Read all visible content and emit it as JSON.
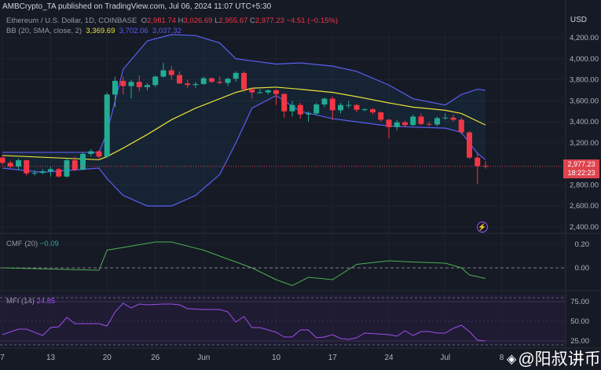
{
  "header": {
    "published": "AMBCrypto_TA published on TradingView.com, Jul 06, 2024 11:07 UTC+5:30"
  },
  "legend": {
    "symbol": "Ethereum / U.S. Dollar, 1D, COINBASE",
    "o_label": "O",
    "o": "2,981.74",
    "h_label": "H",
    "h": "3,026.69",
    "l_label": "L",
    "l": "2,955.67",
    "c_label": "C",
    "c": "2,977.23",
    "change": "−4.51 (−0.15%)",
    "bb_label": "BB (20, SMA, close, 2)",
    "bb_mid": "3,369.69",
    "bb_upper": "3,702.06",
    "bb_lower": "3,037.32",
    "cmf_label": "CMF (20)",
    "cmf_value": "−0.09",
    "mfi_label": "MFI (14)",
    "mfi_value": "24.85"
  },
  "currency": "USD",
  "price_tag": {
    "price": "2,977.23",
    "countdown": "18:22:23"
  },
  "watermark": "@阳叔讲币",
  "colors": {
    "up": "#22ab94",
    "down": "#f23645",
    "bb_mid": "#e8e23a",
    "bb_band": "#5b5ef0",
    "cmf": "#4caf50",
    "mfi": "#9c4ff0"
  },
  "chart_data": [
    {
      "type": "candlestick",
      "title": "Ethereum / U.S. Dollar, 1D, COINBASE",
      "start_date": "2024-05-07",
      "x_ticks": [
        {
          "day": 0,
          "label": "7"
        },
        {
          "day": 6,
          "label": "13"
        },
        {
          "day": 13,
          "label": "20"
        },
        {
          "day": 19,
          "label": "26"
        },
        {
          "day": 25,
          "label": "Jun"
        },
        {
          "day": 34,
          "label": "10"
        },
        {
          "day": 41,
          "label": "17"
        },
        {
          "day": 48,
          "label": "24"
        },
        {
          "day": 55,
          "label": "Jul"
        },
        {
          "day": 62,
          "label": "8"
        }
      ],
      "y_ticks": [
        4200,
        4000,
        3800,
        3600,
        3400,
        3200,
        2800,
        2600,
        2400
      ],
      "ylim": [
        2400,
        4200
      ],
      "ohlc": [
        [
          3060,
          3080,
          2990,
          3010
        ],
        [
          3010,
          3030,
          2960,
          2975
        ],
        [
          2975,
          3050,
          2950,
          3035
        ],
        [
          3035,
          3040,
          2890,
          2910
        ],
        [
          2910,
          2940,
          2890,
          2915
        ],
        [
          2915,
          2950,
          2900,
          2930
        ],
        [
          2930,
          2970,
          2880,
          2950
        ],
        [
          2950,
          2960,
          2870,
          2880
        ],
        [
          2880,
          3050,
          2870,
          3035
        ],
        [
          3035,
          3070,
          2930,
          2945
        ],
        [
          2945,
          3110,
          2940,
          3095
        ],
        [
          3095,
          3140,
          3070,
          3120
        ],
        [
          3120,
          3130,
          3050,
          3070
        ],
        [
          3070,
          3680,
          3060,
          3660
        ],
        [
          3660,
          3830,
          3540,
          3790
        ],
        [
          3790,
          3830,
          3660,
          3740
        ],
        [
          3740,
          3800,
          3620,
          3780
        ],
        [
          3780,
          3840,
          3690,
          3730
        ],
        [
          3730,
          3770,
          3700,
          3750
        ],
        [
          3750,
          3840,
          3730,
          3830
        ],
        [
          3830,
          3960,
          3820,
          3890
        ],
        [
          3890,
          3930,
          3800,
          3845
        ],
        [
          3845,
          3880,
          3760,
          3765
        ],
        [
          3765,
          3800,
          3720,
          3750
        ],
        [
          3750,
          3780,
          3720,
          3760
        ],
        [
          3760,
          3830,
          3750,
          3815
        ],
        [
          3815,
          3820,
          3770,
          3780
        ],
        [
          3780,
          3830,
          3760,
          3770
        ],
        [
          3770,
          3820,
          3740,
          3810
        ],
        [
          3810,
          3880,
          3780,
          3865
        ],
        [
          3865,
          3880,
          3680,
          3710
        ],
        [
          3710,
          3720,
          3620,
          3680
        ],
        [
          3680,
          3710,
          3670,
          3680
        ],
        [
          3680,
          3710,
          3660,
          3700
        ],
        [
          3700,
          3710,
          3560,
          3665
        ],
        [
          3665,
          3670,
          3440,
          3500
        ],
        [
          3500,
          3600,
          3450,
          3560
        ],
        [
          3560,
          3580,
          3430,
          3470
        ],
        [
          3470,
          3500,
          3400,
          3480
        ],
        [
          3480,
          3580,
          3460,
          3565
        ],
        [
          3565,
          3630,
          3540,
          3620
        ],
        [
          3620,
          3640,
          3420,
          3510
        ],
        [
          3510,
          3580,
          3480,
          3560
        ],
        [
          3560,
          3600,
          3530,
          3560
        ],
        [
          3560,
          3570,
          3490,
          3515
        ],
        [
          3515,
          3530,
          3500,
          3520
        ],
        [
          3520,
          3530,
          3470,
          3490
        ],
        [
          3490,
          3500,
          3400,
          3420
        ],
        [
          3420,
          3430,
          3240,
          3350
        ],
        [
          3350,
          3420,
          3320,
          3395
        ],
        [
          3395,
          3410,
          3350,
          3370
        ],
        [
          3370,
          3470,
          3360,
          3450
        ],
        [
          3450,
          3480,
          3370,
          3380
        ],
        [
          3380,
          3400,
          3360,
          3375
        ],
        [
          3375,
          3450,
          3360,
          3435
        ],
        [
          3435,
          3480,
          3420,
          3440
        ],
        [
          3440,
          3470,
          3400,
          3420
        ],
        [
          3420,
          3440,
          3280,
          3300
        ],
        [
          3300,
          3310,
          3050,
          3060
        ],
        [
          3060,
          3110,
          2810,
          2980
        ],
        [
          2981.74,
          3026.69,
          2955.67,
          2977.23
        ]
      ],
      "bb_upper": [
        [
          0,
          3110
        ],
        [
          12,
          3110
        ],
        [
          13,
          3300
        ],
        [
          15,
          3900
        ],
        [
          18,
          4170
        ],
        [
          21,
          4230
        ],
        [
          24,
          4220
        ],
        [
          27,
          4150
        ],
        [
          29,
          4000
        ],
        [
          31,
          3980
        ],
        [
          34,
          3950
        ],
        [
          37,
          3960
        ],
        [
          41,
          3930
        ],
        [
          44,
          3880
        ],
        [
          48,
          3750
        ],
        [
          51,
          3620
        ],
        [
          55,
          3560
        ],
        [
          57,
          3660
        ],
        [
          59,
          3710
        ],
        [
          60,
          3700
        ]
      ],
      "bb_mid": [
        [
          0,
          3080
        ],
        [
          12,
          3040
        ],
        [
          13,
          3070
        ],
        [
          15,
          3150
        ],
        [
          18,
          3280
        ],
        [
          21,
          3420
        ],
        [
          24,
          3530
        ],
        [
          27,
          3620
        ],
        [
          29,
          3680
        ],
        [
          31,
          3720
        ],
        [
          34,
          3730
        ],
        [
          37,
          3710
        ],
        [
          41,
          3680
        ],
        [
          44,
          3640
        ],
        [
          48,
          3580
        ],
        [
          51,
          3540
        ],
        [
          55,
          3510
        ],
        [
          57,
          3480
        ],
        [
          60,
          3370
        ]
      ],
      "bb_lower": [
        [
          0,
          2960
        ],
        [
          5,
          2920
        ],
        [
          12,
          2960
        ],
        [
          13,
          2860
        ],
        [
          15,
          2700
        ],
        [
          18,
          2600
        ],
        [
          21,
          2600
        ],
        [
          24,
          2700
        ],
        [
          27,
          2900
        ],
        [
          29,
          3200
        ],
        [
          31,
          3530
        ],
        [
          34,
          3650
        ],
        [
          37,
          3500
        ],
        [
          41,
          3430
        ],
        [
          44,
          3400
        ],
        [
          48,
          3360
        ],
        [
          51,
          3350
        ],
        [
          55,
          3340
        ],
        [
          57,
          3300
        ],
        [
          59,
          3100
        ],
        [
          60,
          3040
        ]
      ]
    },
    {
      "type": "line",
      "title": "CMF (20)",
      "y_ticks": [
        0.2,
        0.0
      ],
      "ylim": [
        -0.18,
        0.3
      ],
      "values": [
        [
          0,
          0.0
        ],
        [
          12,
          -0.02
        ],
        [
          13,
          0.15
        ],
        [
          19,
          0.22
        ],
        [
          21,
          0.22
        ],
        [
          25,
          0.15
        ],
        [
          27,
          0.1
        ],
        [
          31,
          0.0
        ],
        [
          34,
          -0.1
        ],
        [
          36,
          -0.15
        ],
        [
          38,
          -0.08
        ],
        [
          41,
          -0.1
        ],
        [
          44,
          0.03
        ],
        [
          48,
          0.06
        ],
        [
          51,
          0.05
        ],
        [
          55,
          0.04
        ],
        [
          57,
          0.0
        ],
        [
          58,
          -0.06
        ],
        [
          60,
          -0.09
        ]
      ]
    },
    {
      "type": "line",
      "title": "MFI (14)",
      "y_ticks": [
        75,
        50,
        25
      ],
      "ylim": [
        15,
        85
      ],
      "band": [
        20,
        80
      ],
      "values": [
        [
          0,
          33
        ],
        [
          2,
          40
        ],
        [
          3,
          40
        ],
        [
          5,
          32
        ],
        [
          6,
          42
        ],
        [
          7,
          43
        ],
        [
          8,
          55
        ],
        [
          9,
          47
        ],
        [
          12,
          47
        ],
        [
          13,
          44
        ],
        [
          14,
          62
        ],
        [
          15,
          73
        ],
        [
          16,
          67
        ],
        [
          17,
          72
        ],
        [
          18,
          71
        ],
        [
          20,
          72
        ],
        [
          21,
          72
        ],
        [
          22,
          71
        ],
        [
          23,
          66
        ],
        [
          25,
          65
        ],
        [
          27,
          65
        ],
        [
          28,
          62
        ],
        [
          29,
          49
        ],
        [
          30,
          56
        ],
        [
          31,
          42
        ],
        [
          32,
          42
        ],
        [
          34,
          36
        ],
        [
          35,
          30
        ],
        [
          36,
          30
        ],
        [
          37,
          39
        ],
        [
          38,
          39
        ],
        [
          39,
          29
        ],
        [
          40,
          30
        ],
        [
          41,
          33
        ],
        [
          42,
          28
        ],
        [
          43,
          27
        ],
        [
          44,
          29
        ],
        [
          45,
          35
        ],
        [
          48,
          33
        ],
        [
          49,
          31
        ],
        [
          50,
          38
        ],
        [
          51,
          32
        ],
        [
          52,
          37
        ],
        [
          53,
          37
        ],
        [
          54,
          35
        ],
        [
          55,
          35
        ],
        [
          56,
          41
        ],
        [
          57,
          45
        ],
        [
          58,
          37
        ],
        [
          59,
          26
        ],
        [
          60,
          24.85
        ]
      ]
    }
  ]
}
